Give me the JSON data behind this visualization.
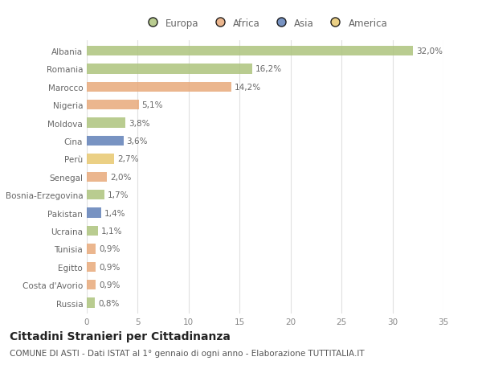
{
  "countries": [
    "Albania",
    "Romania",
    "Marocco",
    "Nigeria",
    "Moldova",
    "Cina",
    "Perù",
    "Senegal",
    "Bosnia-Erzegovina",
    "Pakistan",
    "Ucraina",
    "Tunisia",
    "Egitto",
    "Costa d'Avorio",
    "Russia"
  ],
  "values": [
    32.0,
    16.2,
    14.2,
    5.1,
    3.8,
    3.6,
    2.7,
    2.0,
    1.7,
    1.4,
    1.1,
    0.9,
    0.9,
    0.9,
    0.8
  ],
  "labels": [
    "32,0%",
    "16,2%",
    "14,2%",
    "5,1%",
    "3,8%",
    "3,6%",
    "2,7%",
    "2,0%",
    "1,7%",
    "1,4%",
    "1,1%",
    "0,9%",
    "0,9%",
    "0,9%",
    "0,8%"
  ],
  "continents": [
    "Europa",
    "Europa",
    "Africa",
    "Africa",
    "Europa",
    "Asia",
    "America",
    "Africa",
    "Europa",
    "Asia",
    "Europa",
    "Africa",
    "Africa",
    "Africa",
    "Europa"
  ],
  "continent_colors": {
    "Europa": "#adc47d",
    "Africa": "#e8a97a",
    "Asia": "#6080b8",
    "America": "#e8c870"
  },
  "legend_order": [
    "Europa",
    "Africa",
    "Asia",
    "America"
  ],
  "title": "Cittadini Stranieri per Cittadinanza",
  "subtitle": "COMUNE DI ASTI - Dati ISTAT al 1° gennaio di ogni anno - Elaborazione TUTTITALIA.IT",
  "xlim": [
    0,
    35
  ],
  "xticks": [
    0,
    5,
    10,
    15,
    20,
    25,
    30,
    35
  ],
  "background_color": "#ffffff",
  "grid_color": "#e0e0e0",
  "bar_height": 0.55,
  "title_fontsize": 10,
  "subtitle_fontsize": 7.5,
  "label_fontsize": 7.5,
  "tick_fontsize": 7.5,
  "legend_fontsize": 8.5
}
